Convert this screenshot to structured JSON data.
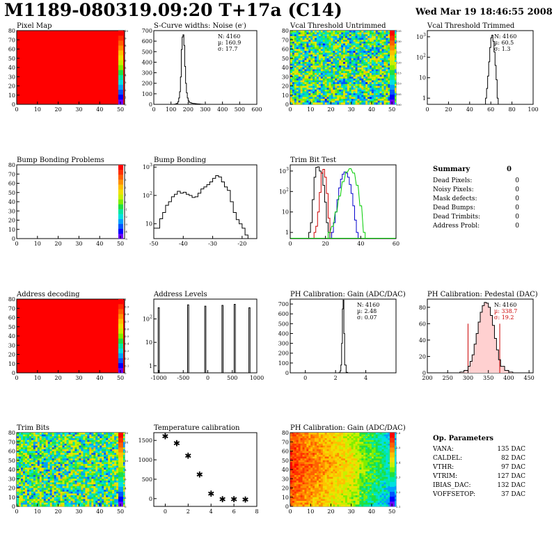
{
  "header": {
    "title": "M1189-080319.09:20 T+17a (C14)",
    "date": "Wed Mar 19 18:46:55 2008"
  },
  "palette": [
    "#6b00ff",
    "#0000ff",
    "#0055ff",
    "#00a0ff",
    "#00e0e0",
    "#00e8a0",
    "#20e040",
    "#80ee00",
    "#c8f000",
    "#f0e000",
    "#ffc000",
    "#ff9000",
    "#ff6000",
    "#ff3000",
    "#ff0000"
  ],
  "panels": [
    {
      "title": "Pixel Map",
      "kind": "map",
      "xticks": [
        "0",
        "10",
        "20",
        "30",
        "40",
        "50"
      ],
      "yticks": [
        "0",
        "10",
        "20",
        "30",
        "40",
        "50",
        "60",
        "70",
        "80"
      ],
      "zticks": [
        "0",
        "1",
        "2",
        "3",
        "4",
        "5",
        "6",
        "7",
        "8",
        "9",
        "10"
      ]
    },
    {
      "title": "S-Curve widths: Noise (e",
      "title_sup": "-",
      "title_end": ")",
      "kind": "hist",
      "xticks": [
        "0",
        "100",
        "200",
        "300",
        "400",
        "500",
        "600"
      ],
      "yticks": [
        "0",
        "100",
        "200",
        "300",
        "400",
        "500",
        "600",
        "700"
      ],
      "stats": [
        {
          "label": "N: 4160"
        },
        {
          "label": "µ: 160.9"
        },
        {
          "label": "σ: 17.7"
        }
      ]
    },
    {
      "title": "Vcal Threshold Untrimmed",
      "kind": "map",
      "xticks": [
        "0",
        "10",
        "20",
        "30",
        "40",
        "50"
      ],
      "yticks": [
        "0",
        "10",
        "20",
        "30",
        "40",
        "50",
        "60",
        "70",
        "80"
      ],
      "zticks": [
        "100",
        "105",
        "110",
        "115",
        "120",
        "125",
        "130",
        "135"
      ]
    },
    {
      "title": "Vcal Threshold Trimmed",
      "kind": "hist",
      "xticks": [
        "0",
        "20",
        "40",
        "60",
        "80",
        "100"
      ],
      "yticks": [
        "1",
        "10",
        "10",
        "10"
      ],
      "ysups": [
        "",
        "",
        "2",
        "3"
      ],
      "stats": [
        {
          "label": "N: 4160"
        },
        {
          "label": "µ: 60.5"
        },
        {
          "label": "σ:  1.3"
        }
      ]
    },
    {
      "title": "Bump Bonding Problems",
      "kind": "map",
      "xticks": [
        "0",
        "10",
        "20",
        "30",
        "40",
        "50"
      ],
      "yticks": [
        "0",
        "10",
        "20",
        "30",
        "40",
        "50",
        "60",
        "70",
        "80"
      ],
      "zticks": [
        "-5",
        "-4",
        "-3",
        "-2",
        "-1",
        "0",
        "1",
        "2",
        "3",
        "4",
        "5"
      ]
    },
    {
      "title": "Bump Bonding",
      "kind": "hist",
      "xticks": [
        "-50",
        "-40",
        "-30",
        "-20"
      ],
      "yticks": [
        "10",
        "10",
        "10"
      ],
      "ysups": [
        "",
        "2",
        "3"
      ]
    },
    {
      "title": "Trim Bit Test",
      "kind": "hist",
      "xticks": [
        "0",
        "20",
        "40",
        "60"
      ],
      "yticks": [
        "1",
        "10",
        "10",
        "10"
      ],
      "ysups": [
        "",
        "",
        "2",
        "3"
      ]
    },
    {
      "title": "Address decoding",
      "kind": "map",
      "xticks": [
        "0",
        "10",
        "20",
        "30",
        "40",
        "50"
      ],
      "yticks": [
        "0",
        "10",
        "20",
        "30",
        "40",
        "50",
        "60",
        "70",
        "80"
      ],
      "zticks": [
        "0",
        "0.1",
        "0.2",
        "0.3",
        "0.4",
        "0.5",
        "0.6",
        "0.7",
        "0.8",
        "0.9",
        "1"
      ]
    },
    {
      "title": "Address Levels",
      "kind": "hist",
      "xticks": [
        "-1000",
        "-500",
        "0",
        "500",
        "1000"
      ],
      "yticks": [
        "1",
        "10",
        "10"
      ],
      "ysups": [
        "",
        "",
        "2"
      ]
    },
    {
      "title": "PH Calibration: Gain (ADC/DAC)",
      "kind": "hist",
      "xticks": [
        "0",
        "2",
        "4"
      ],
      "yticks": [
        "0",
        "100",
        "200",
        "300",
        "400",
        "500",
        "600",
        "700"
      ],
      "stats": [
        {
          "label": "N: 4160"
        },
        {
          "label": "µ: 2.48"
        },
        {
          "label": "σ: 0.07"
        }
      ]
    },
    {
      "title": "PH Calibration: Pedestal (DAC)",
      "kind": "hist",
      "xticks": [
        "200",
        "250",
        "300",
        "350",
        "400",
        "450"
      ],
      "yticks": [
        "0",
        "20",
        "40",
        "60",
        "80"
      ],
      "stats": [
        {
          "label": "N: 4160"
        },
        {
          "label": "µ: 338.7",
          "color": "#cc0000"
        },
        {
          "label": "σ: 19.2",
          "color": "#cc0000"
        }
      ]
    },
    {
      "title": "Trim Bits",
      "kind": "map",
      "xticks": [
        "0",
        "10",
        "20",
        "30",
        "40",
        "50"
      ],
      "yticks": [
        "0",
        "10",
        "20",
        "30",
        "40",
        "50",
        "60",
        "70",
        "80"
      ],
      "zticks": [
        "0",
        "2",
        "4",
        "6",
        "8",
        "10",
        "12",
        "14",
        "16"
      ]
    },
    {
      "title": "Temperature calibration",
      "kind": "scatter",
      "xticks": [
        "0",
        "2",
        "4",
        "6",
        "8"
      ],
      "yticks": [
        "0",
        "500",
        "1000",
        "1500"
      ]
    },
    {
      "title": "PH Calibration: Gain (ADC/DAC)",
      "kind": "map",
      "xticks": [
        "0",
        "10",
        "20",
        "30",
        "40",
        "50"
      ],
      "yticks": [
        "0",
        "10",
        "20",
        "30",
        "40",
        "50",
        "60",
        "70",
        "80"
      ],
      "zticks": [
        "2.1",
        "2.2",
        "2.3",
        "2.4",
        "2.5",
        "2.6"
      ]
    }
  ],
  "summary": {
    "title": "Summary",
    "total": "0",
    "rows": [
      {
        "label": "Dead Pixels:",
        "value": "0"
      },
      {
        "label": "Noisy Pixels:",
        "value": "0"
      },
      {
        "label": "Mask defects:",
        "value": "0"
      },
      {
        "label": "Dead Bumps:",
        "value": "0"
      },
      {
        "label": "Dead Trimbits:",
        "value": "0"
      },
      {
        "label": "Address Probl:",
        "value": "0"
      }
    ]
  },
  "op_params": {
    "title": "Op. Parameters",
    "rows": [
      {
        "label": "VANA:",
        "value": "135 DAC"
      },
      {
        "label": "CALDEL:",
        "value": "82 DAC"
      },
      {
        "label": "VTHR:",
        "value": "97 DAC"
      },
      {
        "label": "VTRIM:",
        "value": "127 DAC"
      },
      {
        "label": "IBIAS_DAC:",
        "value": "132 DAC"
      },
      {
        "label": "VOFFSETOP:",
        "value": "37 DAC"
      }
    ]
  },
  "chart_data": [
    {
      "type": "heatmap",
      "title": "Pixel Map",
      "xlim": [
        0,
        52
      ],
      "ylim": [
        0,
        80
      ],
      "zlim": [
        0,
        10
      ],
      "fill": "uniform",
      "z": 10
    },
    {
      "type": "bar",
      "title": "S-Curve widths: Noise (e-)",
      "xlim": [
        0,
        600
      ],
      "ylim": [
        0,
        700
      ],
      "x": [
        110,
        120,
        130,
        140,
        145,
        150,
        155,
        160,
        165,
        170,
        175,
        180,
        185,
        190,
        195,
        200,
        205,
        210,
        220,
        230,
        240,
        250,
        260,
        270,
        280,
        290
      ],
      "values": [
        0,
        2,
        8,
        25,
        60,
        120,
        260,
        520,
        640,
        660,
        560,
        360,
        200,
        110,
        60,
        35,
        22,
        15,
        10,
        8,
        6,
        4,
        3,
        2,
        1,
        0
      ]
    },
    {
      "type": "heatmap",
      "title": "Vcal Threshold Untrimmed",
      "xlim": [
        0,
        52
      ],
      "ylim": [
        0,
        80
      ],
      "zlim": [
        100,
        135
      ],
      "fill": "noise"
    },
    {
      "type": "bar",
      "title": "Vcal Threshold Trimmed",
      "xlim": [
        0,
        100
      ],
      "log": true,
      "ylim": [
        0.5,
        2000
      ],
      "x": [
        55,
        56,
        57,
        58,
        59,
        60,
        61,
        62,
        63,
        64,
        65,
        66
      ],
      "values": [
        1,
        3,
        12,
        60,
        300,
        900,
        1200,
        600,
        180,
        40,
        8,
        1
      ]
    },
    {
      "type": "heatmap",
      "title": "Bump Bonding Problems",
      "xlim": [
        0,
        52
      ],
      "ylim": [
        0,
        80
      ],
      "zlim": [
        -5,
        5
      ],
      "fill": "empty"
    },
    {
      "type": "bar",
      "title": "Bump Bonding",
      "xlim": [
        -50,
        -15
      ],
      "log": true,
      "ylim": [
        3,
        1200
      ],
      "x": [
        -50,
        -48,
        -47,
        -46,
        -45,
        -44,
        -43,
        -42,
        -41,
        -40,
        -39,
        -38,
        -37,
        -36,
        -35,
        -34,
        -33,
        -32,
        -31,
        -30,
        -29,
        -28,
        -27,
        -26,
        -25,
        -24,
        -23,
        -22,
        -21,
        -20,
        -19,
        -18
      ],
      "values": [
        7,
        15,
        25,
        45,
        60,
        90,
        110,
        140,
        120,
        130,
        110,
        100,
        85,
        90,
        120,
        170,
        200,
        240,
        300,
        400,
        500,
        450,
        300,
        200,
        150,
        60,
        25,
        14,
        10,
        7,
        4,
        3
      ]
    },
    {
      "type": "line",
      "title": "Trim Bit Test",
      "xlim": [
        0,
        60
      ],
      "log": true,
      "ylim": [
        0.5,
        2000
      ],
      "series": [
        {
          "color": "#000000",
          "x": [
            11,
            12,
            13,
            14,
            15,
            16,
            17,
            18,
            19,
            20,
            21,
            22
          ],
          "values": [
            1,
            3,
            40,
            500,
            1500,
            1600,
            1000,
            800,
            200,
            30,
            3,
            1
          ]
        },
        {
          "color": "#cc0000",
          "x": [
            14,
            15,
            16,
            17,
            18,
            19,
            20,
            21,
            22,
            23
          ],
          "values": [
            1,
            2,
            10,
            90,
            800,
            1200,
            500,
            80,
            5,
            1
          ]
        },
        {
          "color": "#0000cc",
          "x": [
            24,
            25,
            26,
            27,
            28,
            29,
            30,
            31,
            32,
            33,
            34,
            35,
            36,
            37,
            38
          ],
          "values": [
            1,
            3,
            10,
            40,
            150,
            400,
            700,
            900,
            800,
            500,
            220,
            80,
            20,
            4,
            1
          ]
        },
        {
          "color": "#00cc00",
          "x": [
            22,
            24,
            26,
            28,
            30,
            32,
            34,
            36,
            38,
            40,
            42
          ],
          "values": [
            1,
            2,
            10,
            60,
            300,
            900,
            1300,
            800,
            200,
            20,
            1
          ]
        }
      ]
    },
    {
      "type": "heatmap",
      "title": "Address decoding",
      "xlim": [
        0,
        52
      ],
      "ylim": [
        0,
        80
      ],
      "zlim": [
        0,
        1
      ],
      "fill": "uniform",
      "z": 1
    },
    {
      "type": "bar",
      "title": "Address Levels",
      "xlim": [
        -1100,
        1000
      ],
      "log": true,
      "ylim": [
        0.5,
        700
      ],
      "x": [
        -1000,
        -400,
        -50,
        300,
        550,
        850
      ],
      "values": [
        300,
        400,
        350,
        380,
        420,
        300
      ]
    },
    {
      "type": "bar",
      "title": "PH Calibration: Gain (ADC/DAC)",
      "xlim": [
        -1,
        6
      ],
      "ylim": [
        0,
        750
      ],
      "x": [
        2.2,
        2.3,
        2.35,
        2.4,
        2.45,
        2.5,
        2.55,
        2.6,
        2.7
      ],
      "values": [
        2,
        20,
        80,
        300,
        650,
        740,
        400,
        80,
        5
      ]
    },
    {
      "type": "bar",
      "title": "PH Calibration: Pedestal (DAC)",
      "xlim": [
        200,
        460
      ],
      "ylim": [
        0,
        90
      ],
      "x": [
        280,
        290,
        300,
        305,
        310,
        315,
        320,
        325,
        330,
        335,
        340,
        345,
        350,
        355,
        360,
        365,
        370,
        375,
        380,
        390,
        400
      ],
      "values": [
        1,
        3,
        8,
        14,
        22,
        35,
        48,
        62,
        74,
        82,
        86,
        85,
        80,
        70,
        58,
        42,
        28,
        16,
        8,
        3,
        1
      ]
    },
    {
      "type": "heatmap",
      "title": "Trim Bits",
      "xlim": [
        0,
        52
      ],
      "ylim": [
        0,
        80
      ],
      "zlim": [
        0,
        16
      ],
      "fill": "noise"
    },
    {
      "type": "scatter",
      "title": "Temperature calibration",
      "xlim": [
        -1,
        8
      ],
      "ylim": [
        -200,
        1700
      ],
      "x": [
        0,
        1,
        2,
        3,
        4,
        5,
        6,
        7
      ],
      "values": [
        1600,
        1420,
        1100,
        620,
        120,
        -20,
        -25,
        -30
      ]
    },
    {
      "type": "heatmap",
      "title": "PH Calibration: Gain (ADC/DAC)",
      "xlim": [
        0,
        52
      ],
      "ylim": [
        0,
        80
      ],
      "zlim": [
        2.1,
        2.6
      ],
      "fill": "gradient"
    }
  ]
}
